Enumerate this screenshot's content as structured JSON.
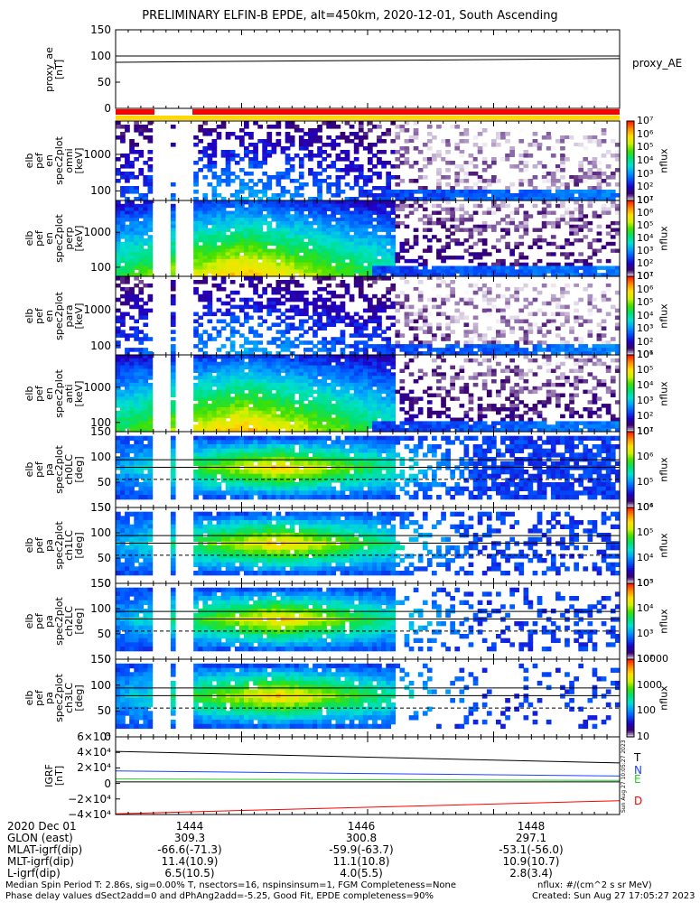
{
  "title": "PRELIMINARY ELFIN-B EPDE, alt=450km, 2020-12-01, South Ascending",
  "side_stamp": "Sun Aug 27 10:05:27 2023",
  "colors": {
    "red_bar": "#ff0000",
    "yellow_bar": "#ffd800",
    "white": "#ffffff",
    "black": "#000000"
  },
  "colorbar_stops": [
    "#ffffff",
    "#3a006a",
    "#1e00c8",
    "#0050ff",
    "#00a0ff",
    "#00e0d0",
    "#00e070",
    "#40e000",
    "#d0f000",
    "#ffe000",
    "#ff9000",
    "#ff2000"
  ],
  "panels": [
    {
      "id": "proxy",
      "ylabel": [
        "proxy_ae",
        "[nT]"
      ],
      "ticks": [
        "150",
        "100",
        "50",
        "0"
      ],
      "right_label": "proxy_AE"
    },
    {
      "id": "en0",
      "ylabel": [
        "elb",
        "pef",
        "en",
        "spec2plot",
        "omni",
        "[keV]"
      ],
      "ticks": [
        "1000",
        "100"
      ],
      "cbar_ticks": [
        "10⁷",
        "10⁶",
        "10⁵",
        "10⁴",
        "10³",
        "10²",
        "10¹"
      ],
      "cbar_label": "nflux"
    },
    {
      "id": "en1",
      "ylabel": [
        "elb",
        "pef",
        "en",
        "spec2plot",
        "perp",
        "[keV]"
      ],
      "ticks": [
        "1000",
        "100"
      ],
      "cbar_ticks": [
        "10⁷",
        "10⁶",
        "10⁵",
        "10⁴",
        "10³",
        "10²",
        "10¹"
      ],
      "cbar_label": "nflux"
    },
    {
      "id": "en2",
      "ylabel": [
        "elb",
        "pef",
        "en",
        "spec2plot",
        "para",
        "[keV]"
      ],
      "ticks": [
        "1000",
        "100"
      ],
      "cbar_ticks": [
        "10⁷",
        "10⁶",
        "10⁵",
        "10⁴",
        "10³",
        "10²",
        "10¹"
      ],
      "cbar_label": "nflux"
    },
    {
      "id": "en3",
      "ylabel": [
        "elb",
        "pef",
        "en",
        "spec2plot",
        "anti",
        "[keV]"
      ],
      "ticks": [
        "1000",
        "100"
      ],
      "cbar_ticks": [
        "10⁶",
        "10⁵",
        "10⁴",
        "10³",
        "10²",
        "10¹"
      ],
      "cbar_label": "nflux"
    },
    {
      "id": "pa0",
      "ylabel": [
        "elb",
        "pef",
        "pa",
        "spec2plot",
        "ch0LC",
        "[deg]"
      ],
      "ticks": [
        "150",
        "100",
        "50",
        "0"
      ],
      "cbar_ticks": [
        "10⁷",
        "10⁶",
        "10⁵",
        "10⁴"
      ],
      "cbar_label": "nflux"
    },
    {
      "id": "pa1",
      "ylabel": [
        "elb",
        "pef",
        "pa",
        "spec2plot",
        "ch1LC",
        "[deg]"
      ],
      "ticks": [
        "150",
        "100",
        "50",
        "0"
      ],
      "cbar_ticks": [
        "10⁶",
        "10⁵",
        "10⁴",
        "10³"
      ],
      "cbar_label": "nflux"
    },
    {
      "id": "pa2",
      "ylabel": [
        "elb",
        "pef",
        "pa",
        "spec2plot",
        "ch2LC",
        "[deg]"
      ],
      "ticks": [
        "150",
        "100",
        "50",
        "0"
      ],
      "cbar_ticks": [
        "10⁵",
        "10⁴",
        "10³",
        "10²"
      ],
      "cbar_label": "nflux"
    },
    {
      "id": "pa3",
      "ylabel": [
        "elb",
        "pef",
        "pa",
        "spec2plot",
        "ch3LC",
        "[deg]"
      ],
      "ticks": [
        "150",
        "100",
        "50",
        "0"
      ],
      "cbar_ticks": [
        "10000",
        "1000",
        "100",
        "10"
      ],
      "cbar_label": "nflux"
    },
    {
      "id": "igrf",
      "ylabel": [
        "IGRF",
        "[nT]"
      ],
      "ticks": [
        "6×10⁴",
        "4×10⁴",
        "2×10⁴",
        "0",
        "−2×10⁴",
        "−4×10⁴"
      ],
      "legend": [
        {
          "name": "T",
          "color": "#000000"
        },
        {
          "name": "N",
          "color": "#2040ff"
        },
        {
          "name": "E",
          "color": "#20d020"
        },
        {
          "name": "D",
          "color": "#ff0000"
        }
      ]
    }
  ],
  "chart_data": {
    "type": "heatmap",
    "title": "PRELIMINARY ELFIN-B EPDE, alt=450km, 2020-12-01, South Ascending",
    "x_ticks": [
      "1444",
      "1446",
      "1448"
    ],
    "proxy_ae": {
      "x": [
        0,
        1
      ],
      "values": [
        88,
        95
      ],
      "ylim": [
        0,
        150
      ]
    },
    "igrf": {
      "ylim": [
        -45000,
        62000
      ],
      "series": [
        {
          "name": "T",
          "values": [
            42000,
            26000
          ]
        },
        {
          "name": "N",
          "values": [
            15000,
            8000
          ]
        },
        {
          "name": "E",
          "values": [
            4000,
            2000
          ]
        },
        {
          "name": "D",
          "values": [
            -44000,
            -26000
          ]
        }
      ]
    }
  },
  "footer_table": {
    "headers": [
      "2020 Dec 01",
      "1444",
      "1446",
      "1448"
    ],
    "rows": [
      [
        "GLON (east)",
        "309.3",
        "300.8",
        "297.1"
      ],
      [
        "MLAT-igrf(dip)",
        "-66.6(-71.3)",
        "-59.9(-63.7)",
        "-53.1(-56.0)"
      ],
      [
        "MLT-igrf(dip)",
        "11.4(10.9)",
        "11.1(10.8)",
        "10.9(10.7)"
      ],
      [
        "L-igrf(dip)",
        "6.5(10.5)",
        "4.0(5.5)",
        "2.8(3.4)"
      ]
    ]
  },
  "footnotes": {
    "line1_left": "Median Spin Period T: 2.86s, sig=0.00% T, nsectors=16, nspinsinsum=1, FGM Completeness=None",
    "line2_left": "Phase delay values dSect2add=0 and dPhAng2add=-5.25, Good Fit, EPDE completeness=90%",
    "line1_right": "nflux: #/(cm^2 s sr MeV)",
    "line2_right": "Created: Sun Aug 27 17:05:27 2023"
  }
}
